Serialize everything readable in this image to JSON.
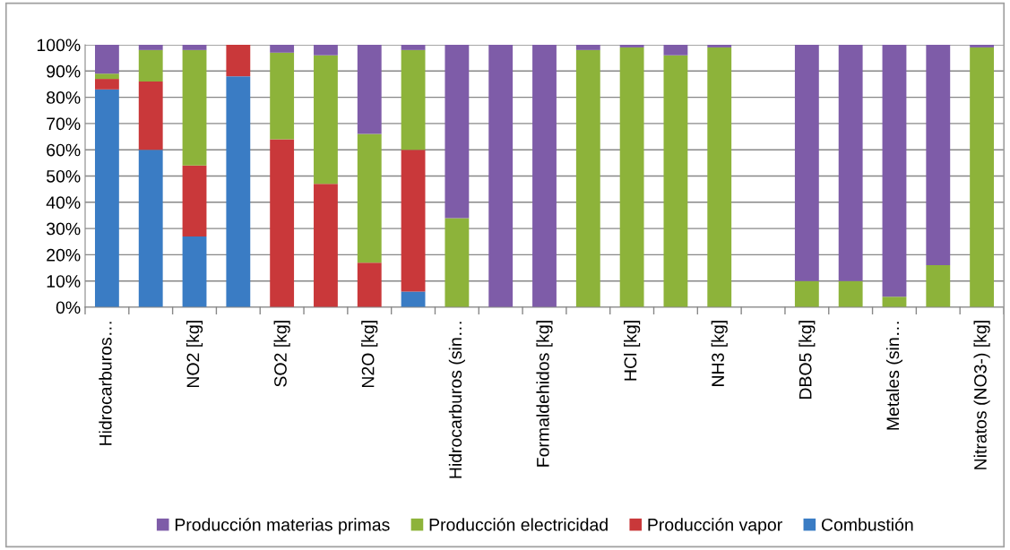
{
  "chart_data": {
    "type": "bar",
    "stacked": true,
    "categories": [
      "Hidrocarburos…",
      null,
      "NO2 [kg]",
      null,
      "SO2 [kg]",
      null,
      "N2O [kg]",
      null,
      "Hidrocarburos (sin…",
      null,
      "Formaldehidos [kg]",
      null,
      "HCl [kg]",
      null,
      "NH3 [kg]",
      null,
      "DBO5 [kg]",
      null,
      "Metales (sin…",
      null,
      "Nitratos (NO3-) [kg]"
    ],
    "series": [
      {
        "name": "Combustión",
        "color": "#3a7cc4",
        "values": [
          83,
          60,
          27,
          88,
          0,
          0,
          0,
          6,
          0,
          0,
          0,
          0,
          0,
          0,
          0,
          null,
          0,
          0,
          0,
          0,
          0
        ]
      },
      {
        "name": "Producción vapor",
        "color": "#c9383a",
        "values": [
          4,
          26,
          27,
          12,
          64,
          47,
          17,
          54,
          0,
          0,
          0,
          0,
          0,
          0,
          0,
          null,
          0,
          0,
          0,
          0,
          0
        ]
      },
      {
        "name": "Producción electricidad",
        "color": "#8db33a",
        "values": [
          2,
          12,
          44,
          0,
          33,
          49,
          49,
          38,
          34,
          0,
          0,
          98,
          99,
          96,
          99,
          null,
          10,
          10,
          4,
          16,
          99
        ]
      },
      {
        "name": "Producción materias primas",
        "color": "#7e5ca8",
        "values": [
          11,
          2,
          2,
          0,
          3,
          4,
          34,
          2,
          66,
          100,
          100,
          2,
          1,
          4,
          1,
          null,
          90,
          90,
          96,
          84,
          1
        ]
      }
    ],
    "ylim": [
      0,
      100
    ],
    "yticks": [
      {
        "value": 0,
        "label": "0%"
      },
      {
        "value": 10,
        "label": "10%"
      },
      {
        "value": 20,
        "label": "20%"
      },
      {
        "value": 30,
        "label": "30%"
      },
      {
        "value": 40,
        "label": "40%"
      },
      {
        "value": 50,
        "label": "50%"
      },
      {
        "value": 60,
        "label": "60%"
      },
      {
        "value": 70,
        "label": "70%"
      },
      {
        "value": 80,
        "label": "80%"
      },
      {
        "value": 90,
        "label": "90%"
      },
      {
        "value": 100,
        "label": "100%"
      }
    ],
    "grid": "y",
    "legend": "bottom"
  }
}
